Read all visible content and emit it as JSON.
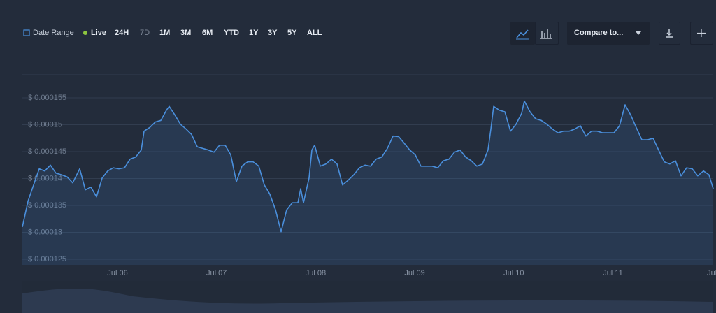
{
  "toolbar": {
    "date_range": "Date Range",
    "live": "Live",
    "ranges": [
      "24H",
      "7D",
      "1M",
      "3M",
      "6M",
      "YTD",
      "1Y",
      "3Y",
      "5Y",
      "ALL"
    ],
    "compare": "Compare to..."
  },
  "chart_data": {
    "type": "line",
    "x": [
      5.04,
      5.097,
      5.153,
      5.21,
      5.266,
      5.323,
      5.379,
      5.435,
      5.492,
      5.548,
      5.619,
      5.675,
      5.732,
      5.788,
      5.845,
      5.901,
      5.958,
      6.014,
      6.071,
      6.127,
      6.183,
      6.24,
      6.268,
      6.325,
      6.381,
      6.438,
      6.494,
      6.522,
      6.579,
      6.635,
      6.692,
      6.748,
      6.805,
      6.861,
      6.917,
      6.974,
      7.03,
      7.087,
      7.143,
      7.2,
      7.256,
      7.313,
      7.369,
      7.426,
      7.482,
      7.538,
      7.595,
      7.651,
      7.708,
      7.764,
      7.821,
      7.849,
      7.877,
      7.934,
      7.962,
      7.99,
      8.047,
      8.103,
      8.16,
      8.216,
      8.272,
      8.329,
      8.385,
      8.442,
      8.498,
      8.555,
      8.611,
      8.668,
      8.724,
      8.781,
      8.837,
      8.893,
      8.95,
      9.006,
      9.063,
      9.119,
      9.176,
      9.232,
      9.289,
      9.345,
      9.402,
      9.458,
      9.514,
      9.571,
      9.627,
      9.684,
      9.74,
      9.769,
      9.797,
      9.853,
      9.91,
      9.966,
      10.023,
      10.079,
      10.107,
      10.164,
      10.22,
      10.277,
      10.333,
      10.39,
      10.446,
      10.502,
      10.559,
      10.615,
      10.672,
      10.728,
      10.785,
      10.841,
      10.898,
      10.954,
      11.011,
      11.067,
      11.124,
      11.18,
      11.236,
      11.293,
      11.349,
      11.406,
      11.462,
      11.519,
      11.575,
      11.632,
      11.688,
      11.745,
      11.801,
      11.857,
      11.914,
      11.97,
      12.013
    ],
    "series": [
      {
        "color": "#4a8fdc",
        "values": [
          0.000131,
          0.0001358,
          0.0001388,
          0.0001418,
          0.0001414,
          0.0001425,
          0.000141,
          0.0001407,
          0.0001403,
          0.0001392,
          0.0001418,
          0.0001379,
          0.0001384,
          0.0001366,
          0.0001401,
          0.0001414,
          0.000142,
          0.0001418,
          0.000142,
          0.0001436,
          0.000144,
          0.0001453,
          0.0001488,
          0.0001495,
          0.0001505,
          0.0001508,
          0.0001527,
          0.0001534,
          0.0001518,
          0.0001501,
          0.0001492,
          0.0001482,
          0.0001459,
          0.0001456,
          0.0001453,
          0.0001449,
          0.0001462,
          0.0001462,
          0.0001444,
          0.0001394,
          0.0001423,
          0.0001431,
          0.0001431,
          0.0001423,
          0.0001388,
          0.0001371,
          0.0001342,
          0.0001301,
          0.0001342,
          0.0001355,
          0.0001355,
          0.0001381,
          0.0001355,
          0.0001401,
          0.0001453,
          0.0001462,
          0.0001423,
          0.0001427,
          0.0001436,
          0.0001427,
          0.0001388,
          0.0001397,
          0.0001407,
          0.000142,
          0.0001425,
          0.0001423,
          0.0001436,
          0.000144,
          0.0001456,
          0.0001479,
          0.0001478,
          0.0001466,
          0.0001453,
          0.0001444,
          0.0001423,
          0.0001423,
          0.0001423,
          0.000142,
          0.0001433,
          0.0001436,
          0.0001449,
          0.0001453,
          0.000144,
          0.0001433,
          0.0001423,
          0.0001427,
          0.0001453,
          0.0001492,
          0.0001534,
          0.0001527,
          0.0001524,
          0.0001488,
          0.0001501,
          0.0001521,
          0.0001544,
          0.0001524,
          0.0001511,
          0.0001508,
          0.0001501,
          0.0001492,
          0.0001485,
          0.0001488,
          0.0001488,
          0.0001492,
          0.0001498,
          0.0001479,
          0.0001488,
          0.0001488,
          0.0001485,
          0.0001485,
          0.0001485,
          0.0001498,
          0.0001537,
          0.0001518,
          0.0001495,
          0.0001472,
          0.0001472,
          0.0001475,
          0.0001453,
          0.0001431,
          0.0001427,
          0.0001433,
          0.0001405,
          0.000142,
          0.0001418,
          0.0001405,
          0.0001414,
          0.0001407,
          0.0001381
        ]
      }
    ],
    "xlim": [
      5.04,
      12.013
    ],
    "xticks": [
      {
        "value": 6,
        "label": "Jul 06"
      },
      {
        "value": 7,
        "label": "Jul 07"
      },
      {
        "value": 8,
        "label": "Jul 08"
      },
      {
        "value": 9,
        "label": "Jul 09"
      },
      {
        "value": 10,
        "label": "Jul 10"
      },
      {
        "value": 11,
        "label": "Jul 11"
      },
      {
        "value": 12,
        "label": "Jul"
      }
    ],
    "ylim": [
      0.000125,
      0.00016
    ],
    "yticks": [
      {
        "value": 0.000125,
        "label": "$ 0.000125"
      },
      {
        "value": 0.00013,
        "label": "$ 0.00013"
      },
      {
        "value": 0.000135,
        "label": "$ 0.000135"
      },
      {
        "value": 0.00014,
        "label": "$ 0.00014"
      },
      {
        "value": 0.000145,
        "label": "$ 0.000145"
      },
      {
        "value": 0.00015,
        "label": "$ 0.00015"
      },
      {
        "value": 0.000155,
        "label": "$ 0.000155"
      }
    ],
    "grid": true
  }
}
